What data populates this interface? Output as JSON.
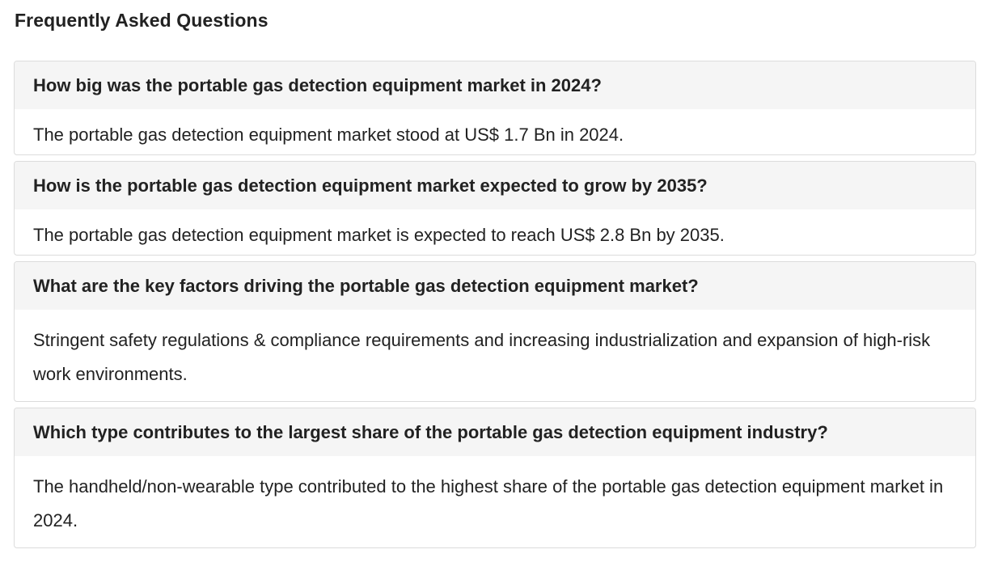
{
  "section": {
    "title": "Frequently Asked Questions"
  },
  "faq": [
    {
      "question": "How big was the portable gas detection equipment market in 2024?",
      "answer": "The portable gas detection equipment market stood at US$ 1.7 Bn in 2024."
    },
    {
      "question": "How is the portable gas detection equipment market expected to grow by 2035?",
      "answer": "The portable gas detection equipment market is expected to reach US$ 2.8 Bn by 2035."
    },
    {
      "question": "What are the key factors driving the portable gas detection equipment market?",
      "answer": "Stringent safety regulations & compliance requirements and increasing industrialization and expansion of high-risk work environments."
    },
    {
      "question": "Which type contributes to the largest share of the portable gas detection equipment industry?",
      "answer": "The handheld/non-wearable type contributed to the highest share of the portable gas detection equipment market in 2024."
    }
  ]
}
